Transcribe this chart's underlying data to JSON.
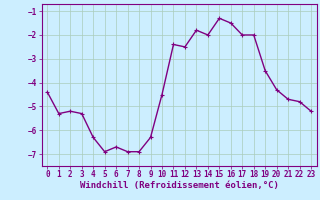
{
  "x": [
    0,
    1,
    2,
    3,
    4,
    5,
    6,
    7,
    8,
    9,
    10,
    11,
    12,
    13,
    14,
    15,
    16,
    17,
    18,
    19,
    20,
    21,
    22,
    23
  ],
  "y": [
    -4.4,
    -5.3,
    -5.2,
    -5.3,
    -6.3,
    -6.9,
    -6.7,
    -6.9,
    -6.9,
    -6.3,
    -4.5,
    -2.4,
    -2.5,
    -1.8,
    -2.0,
    -1.3,
    -1.5,
    -2.0,
    -2.0,
    -3.5,
    -4.3,
    -4.7,
    -4.8,
    -5.2
  ],
  "line_color": "#800080",
  "marker": "+",
  "marker_size": 3,
  "bg_color": "#cceeff",
  "grid_color": "#aaccbb",
  "xlabel": "Windchill (Refroidissement éolien,°C)",
  "xlabel_color": "#800080",
  "tick_color": "#800080",
  "ylim": [
    -7.5,
    -0.7
  ],
  "xlim": [
    -0.5,
    23.5
  ],
  "yticks": [
    -7,
    -6,
    -5,
    -4,
    -3,
    -2,
    -1
  ],
  "xticks": [
    0,
    1,
    2,
    3,
    4,
    5,
    6,
    7,
    8,
    9,
    10,
    11,
    12,
    13,
    14,
    15,
    16,
    17,
    18,
    19,
    20,
    21,
    22,
    23
  ],
  "tick_fontsize": 5.5,
  "xlabel_fontsize": 6.5,
  "line_width": 1.0
}
